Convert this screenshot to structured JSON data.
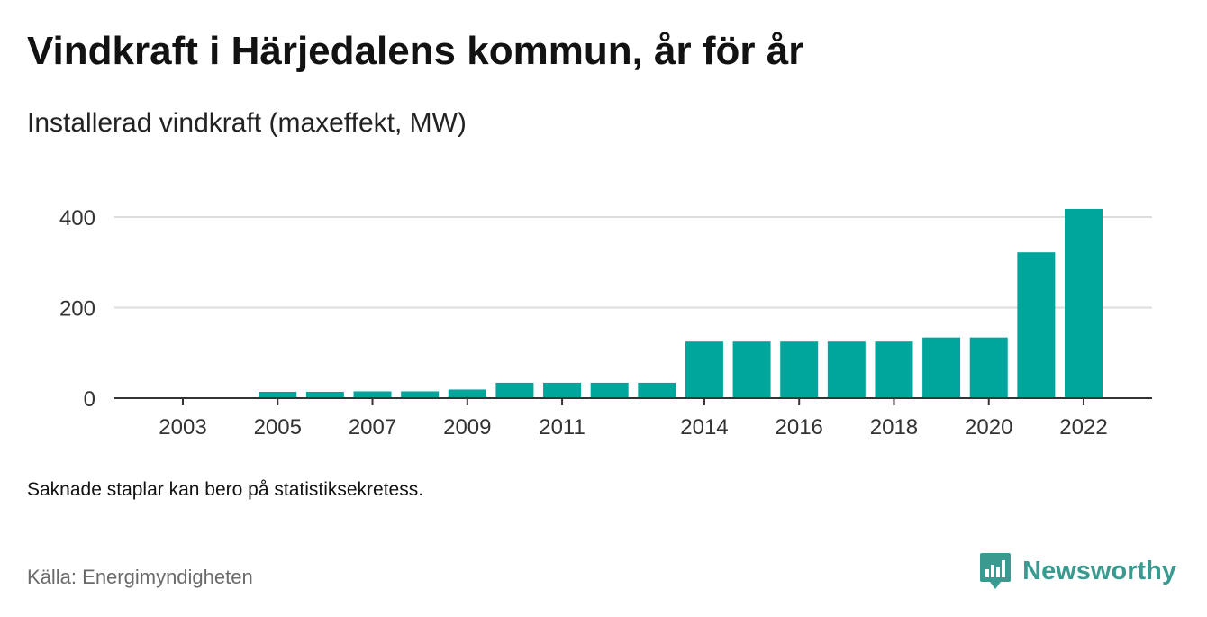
{
  "title": "Vindkraft i Härjedalens kommun, år för år",
  "subtitle": "Installerad vindkraft (maxeffekt, MW)",
  "note": "Saknade staplar kan bero på statistiksekretess.",
  "source": "Källa: Energimyndigheten",
  "brand": {
    "name": "Newsworthy",
    "icon": "newsworthy-logo-icon",
    "color": "#3a9a90"
  },
  "colors": {
    "bar": "#00a69c",
    "grid": "#dddddd",
    "axis": "#333333"
  },
  "chart_data": {
    "type": "bar",
    "title": "Vindkraft i Härjedalens kommun, år för år",
    "subtitle": "Installerad vindkraft (maxeffekt, MW)",
    "xlabel": "",
    "ylabel": "",
    "categories": [
      "2003",
      "2004",
      "2005",
      "2006",
      "2007",
      "2008",
      "2009",
      "2010",
      "2011",
      "2012",
      "2013",
      "2014",
      "2015",
      "2016",
      "2017",
      "2018",
      "2019",
      "2020",
      "2021",
      "2022"
    ],
    "values": [
      0,
      0,
      14,
      14,
      15,
      15,
      19,
      34,
      34,
      34,
      34,
      125,
      125,
      125,
      125,
      125,
      134,
      134,
      322,
      418
    ],
    "x_tick_labels": [
      "2003",
      "2005",
      "2007",
      "2009",
      "2011",
      "2014",
      "2016",
      "2018",
      "2020",
      "2022"
    ],
    "y_ticks": [
      0,
      200,
      400
    ],
    "y_tick_labels": [
      "0",
      "200",
      "400"
    ],
    "ylim": [
      0,
      418
    ],
    "grid": true,
    "legend": "none"
  }
}
